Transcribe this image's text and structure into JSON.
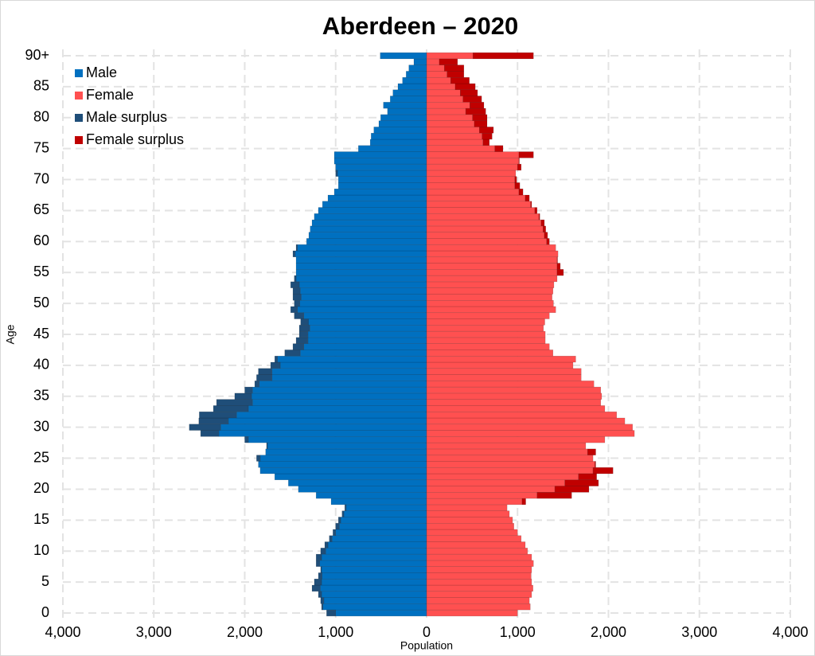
{
  "chart_data": {
    "type": "population-pyramid",
    "title": "Aberdeen – 2020",
    "x_label": "Population",
    "y_label": "Age",
    "categories": [
      "0",
      null,
      null,
      null,
      null,
      "5",
      null,
      null,
      null,
      null,
      "10",
      null,
      null,
      null,
      null,
      "15",
      null,
      null,
      null,
      null,
      "20",
      null,
      null,
      null,
      null,
      "25",
      null,
      null,
      null,
      null,
      "30",
      null,
      null,
      null,
      null,
      "35",
      null,
      null,
      null,
      null,
      "40",
      null,
      null,
      null,
      null,
      "45",
      null,
      null,
      null,
      null,
      "50",
      null,
      null,
      null,
      null,
      "55",
      null,
      null,
      null,
      null,
      "60",
      null,
      null,
      null,
      null,
      "65",
      null,
      null,
      null,
      null,
      "70",
      null,
      null,
      null,
      null,
      "75",
      null,
      null,
      null,
      null,
      "80",
      null,
      null,
      null,
      null,
      "85",
      null,
      null,
      null,
      null,
      "90+"
    ],
    "series": [
      {
        "name": "Male",
        "color": "#0070c0",
        "values": [
          1000,
          1140,
          1130,
          1155,
          1170,
          1155,
          1150,
          1155,
          1175,
          1155,
          1110,
          1085,
          1040,
          1000,
          960,
          945,
          910,
          885,
          1050,
          1215,
          1410,
          1520,
          1670,
          1830,
          1850,
          1830,
          1770,
          1750,
          1960,
          2285,
          2265,
          2180,
          2090,
          1960,
          1915,
          1925,
          1915,
          1840,
          1700,
          1700,
          1610,
          1640,
          1390,
          1350,
          1305,
          1305,
          1285,
          1300,
          1350,
          1420,
          1395,
          1380,
          1390,
          1400,
          1435,
          1435,
          1435,
          1435,
          1445,
          1420,
          1320,
          1295,
          1280,
          1260,
          1235,
          1190,
          1145,
          1085,
          1015,
          970,
          970,
          980,
          1000,
          1015,
          1015,
          750,
          620,
          610,
          580,
          525,
          505,
          430,
          475,
          400,
          370,
          315,
          265,
          225,
          195,
          140,
          510
        ]
      },
      {
        "name": "Female",
        "color": "#ff5050",
        "values": [
          1000,
          1140,
          1130,
          1155,
          1170,
          1155,
          1150,
          1155,
          1175,
          1155,
          1110,
          1085,
          1040,
          1000,
          960,
          945,
          910,
          885,
          1050,
          1215,
          1410,
          1520,
          1670,
          1830,
          1850,
          1830,
          1770,
          1750,
          1960,
          2285,
          2265,
          2180,
          2090,
          1960,
          1915,
          1925,
          1915,
          1840,
          1700,
          1700,
          1610,
          1640,
          1390,
          1350,
          1305,
          1305,
          1285,
          1300,
          1350,
          1420,
          1395,
          1380,
          1390,
          1400,
          1435,
          1435,
          1435,
          1435,
          1445,
          1420,
          1320,
          1295,
          1280,
          1260,
          1235,
          1190,
          1145,
          1085,
          1015,
          970,
          970,
          980,
          1000,
          1015,
          1015,
          750,
          620,
          610,
          580,
          525,
          505,
          430,
          475,
          400,
          370,
          315,
          265,
          225,
          195,
          140,
          510
        ]
      },
      {
        "name": "Male surplus",
        "color": "#1f4e79",
        "values": [
          100,
          15,
          35,
          35,
          90,
          80,
          40,
          10,
          40,
          60,
          55,
          35,
          30,
          30,
          40,
          25,
          20,
          15,
          0,
          0,
          0,
          0,
          0,
          0,
          0,
          40,
          0,
          10,
          40,
          200,
          345,
          325,
          410,
          385,
          395,
          185,
          85,
          50,
          170,
          150,
          105,
          30,
          170,
          120,
          130,
          95,
          115,
          85,
          105,
          75,
          60,
          90,
          80,
          95,
          20,
          0,
          0,
          0,
          25,
          15,
          0,
          0,
          0,
          0,
          0,
          0,
          0,
          0,
          0,
          0,
          0,
          20,
          0,
          0,
          0,
          0,
          0,
          0,
          0,
          0,
          0,
          0,
          0,
          0,
          0,
          0,
          0,
          0,
          0,
          0,
          0
        ]
      },
      {
        "name": "Female surplus",
        "color": "#c00000",
        "values": [
          0,
          0,
          0,
          0,
          0,
          0,
          0,
          0,
          0,
          0,
          0,
          0,
          0,
          0,
          0,
          0,
          0,
          0,
          40,
          380,
          375,
          370,
          200,
          220,
          10,
          0,
          90,
          0,
          0,
          0,
          0,
          0,
          0,
          0,
          0,
          0,
          0,
          0,
          0,
          0,
          0,
          0,
          0,
          0,
          0,
          0,
          0,
          0,
          0,
          0,
          0,
          0,
          0,
          0,
          0,
          70,
          35,
          5,
          0,
          0,
          30,
          35,
          30,
          35,
          10,
          25,
          10,
          45,
          45,
          55,
          20,
          0,
          40,
          5,
          160,
          90,
          70,
          110,
          155,
          140,
          160,
          220,
          155,
          205,
          190,
          220,
          205,
          185,
          215,
          200,
          665
        ]
      }
    ],
    "xlim": [
      -4000,
      4000
    ],
    "xticks": [
      {
        "value": -4000,
        "label": "4,000"
      },
      {
        "value": -3000,
        "label": "3,000"
      },
      {
        "value": -2000,
        "label": "2,000"
      },
      {
        "value": -1000,
        "label": "1,000"
      },
      0,
      {
        "value": 1000,
        "label": "1,000"
      },
      {
        "value": 2000,
        "label": "2,000"
      },
      {
        "value": 3000,
        "label": "3,000"
      },
      {
        "value": 4000,
        "label": "4,000"
      }
    ],
    "grid": true,
    "legend": "top-left"
  }
}
